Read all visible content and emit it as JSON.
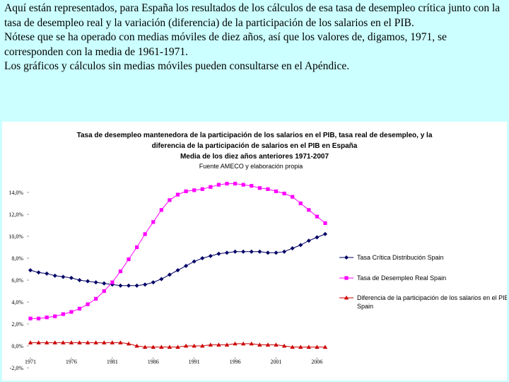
{
  "intro": {
    "p1": "Aquí están representados, para España los resultados de los cálculos de esa tasa de desempleo crítica junto con la tasa de desempleo real y la variación (diferencia) de la participación de los salarios en el PIB.",
    "p2": "Nótese que se ha operado con medias móviles de diez años, así que los valores de, digamos, 1971, se corresponden con la media de 1961-1971.",
    "p3": "Los gráficos y cálculos sin medias móviles pueden consultarse en el Apéndice."
  },
  "chart_data": {
    "type": "line",
    "title_lines": [
      "Tasa de desempleo mantenedora de la participación de los salarios en el PIB, tasa real de desempleo, y la",
      "diferencia de la participación de salarios en el PIB en España",
      "Media de los diez años anteriores 1971-2007"
    ],
    "source": "Fuente AMECO y elaboración propia",
    "x": [
      1971,
      1972,
      1973,
      1974,
      1975,
      1976,
      1977,
      1978,
      1979,
      1980,
      1981,
      1982,
      1983,
      1984,
      1985,
      1986,
      1987,
      1988,
      1989,
      1990,
      1991,
      1992,
      1993,
      1994,
      1995,
      1996,
      1997,
      1998,
      1999,
      2000,
      2001,
      2002,
      2003,
      2004,
      2005,
      2006,
      2007
    ],
    "xticks": [
      1971,
      1976,
      1981,
      1986,
      1991,
      1996,
      2001,
      2006
    ],
    "ylim": [
      -2,
      14
    ],
    "yticks": [
      -2,
      0,
      2,
      4,
      6,
      8,
      10,
      12,
      14
    ],
    "ytick_labels": [
      "-2,0%",
      "0,0%",
      "2,0%",
      "4,0%",
      "6,0%",
      "8,0%",
      "10,0%",
      "12,0%",
      "14,0%"
    ],
    "legend_position": "right",
    "series": [
      {
        "name": "Tasa Crítica Distribución Spain",
        "color": "#000066",
        "marker": "diamond",
        "values": [
          6.9,
          6.7,
          6.6,
          6.4,
          6.3,
          6.2,
          6.0,
          5.9,
          5.8,
          5.7,
          5.6,
          5.5,
          5.5,
          5.5,
          5.6,
          5.8,
          6.1,
          6.5,
          6.9,
          7.3,
          7.7,
          8.0,
          8.2,
          8.4,
          8.5,
          8.6,
          8.6,
          8.6,
          8.6,
          8.5,
          8.5,
          8.6,
          8.9,
          9.2,
          9.6,
          9.9,
          10.2
        ]
      },
      {
        "name": "Tasa de Desempleo Real Spain",
        "color": "#ff00ff",
        "marker": "square",
        "values": [
          2.5,
          2.5,
          2.6,
          2.7,
          2.9,
          3.1,
          3.4,
          3.8,
          4.3,
          5.0,
          5.8,
          6.8,
          7.9,
          9.0,
          10.2,
          11.3,
          12.4,
          13.3,
          13.8,
          14.1,
          14.2,
          14.3,
          14.5,
          14.7,
          14.8,
          14.8,
          14.7,
          14.6,
          14.4,
          14.3,
          14.1,
          13.9,
          13.6,
          13.0,
          12.4,
          11.8,
          11.2
        ]
      },
      {
        "name": "Diferencia de la participación de los salarios en el PIB, Spain",
        "color": "#cc0000",
        "marker": "triangle",
        "values": [
          0.3,
          0.3,
          0.3,
          0.3,
          0.3,
          0.3,
          0.3,
          0.3,
          0.3,
          0.3,
          0.3,
          0.3,
          0.2,
          0.0,
          -0.1,
          -0.1,
          -0.1,
          -0.1,
          -0.1,
          0.0,
          0.0,
          0.0,
          0.1,
          0.1,
          0.1,
          0.2,
          0.2,
          0.2,
          0.1,
          0.1,
          0.1,
          0.0,
          -0.1,
          -0.1,
          -0.1,
          -0.1,
          -0.1
        ]
      }
    ]
  }
}
